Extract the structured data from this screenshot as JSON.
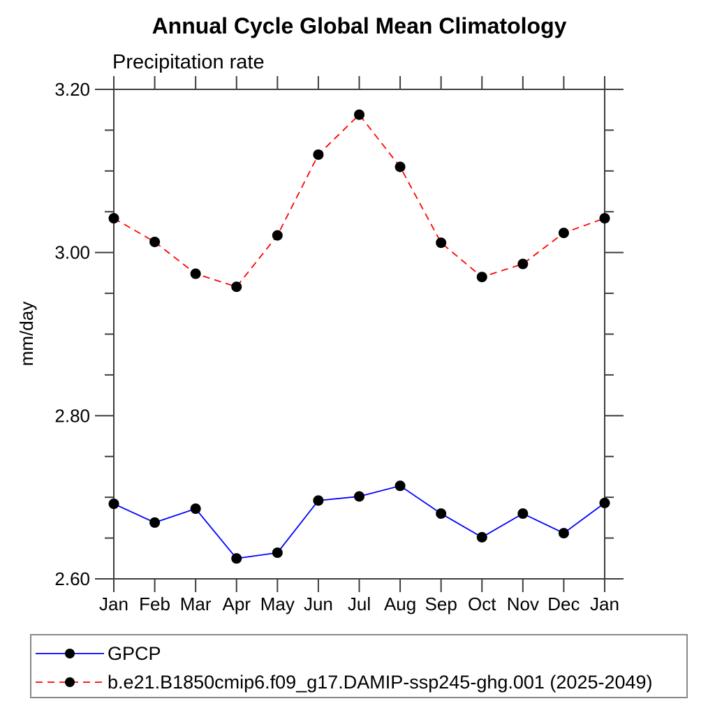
{
  "chart_data": {
    "type": "line",
    "title": "Annual Cycle Global Mean Climatology",
    "subtitle": "Precipitation rate",
    "ylabel": "mm/day",
    "xlabel": "",
    "categories": [
      "Jan",
      "Feb",
      "Mar",
      "Apr",
      "May",
      "Jun",
      "Jul",
      "Aug",
      "Sep",
      "Oct",
      "Nov",
      "Dec",
      "Jan"
    ],
    "ylim": [
      2.6,
      3.2
    ],
    "ytick_major": [
      2.6,
      2.8,
      3.0,
      3.2
    ],
    "ytick_major_labels": [
      "2.60",
      "2.80",
      "3.00",
      "3.20"
    ],
    "ytick_minor_step": 0.05,
    "grid": false,
    "legend_position": "bottom",
    "series": [
      {
        "name": "GPCP",
        "color": "#0000ff",
        "line_style": "solid",
        "marker": "circle",
        "marker_color": "#000000",
        "values": [
          2.692,
          2.669,
          2.686,
          2.625,
          2.632,
          2.696,
          2.701,
          2.714,
          2.68,
          2.651,
          2.68,
          2.656,
          2.693
        ]
      },
      {
        "name": "b.e21.B1850cmip6.f09_g17.DAMIP-ssp245-ghg.001 (2025-2049)",
        "color": "#ff0000",
        "line_style": "dashed",
        "marker": "circle",
        "marker_color": "#000000",
        "values": [
          3.042,
          3.013,
          2.974,
          2.958,
          3.021,
          3.12,
          3.169,
          3.105,
          3.012,
          2.97,
          2.986,
          3.024,
          3.042
        ]
      }
    ]
  },
  "colors": {
    "axis": "#3d3d3d",
    "text": "#000000",
    "legend_border": "#888888",
    "background": "#ffffff"
  }
}
